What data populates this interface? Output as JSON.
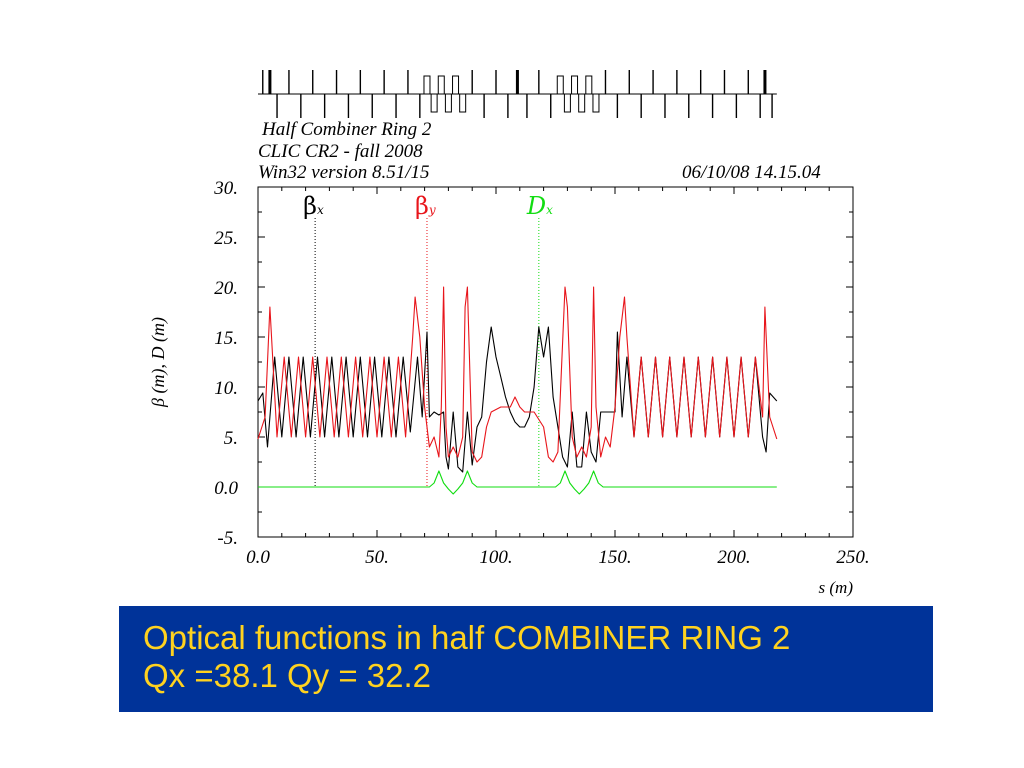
{
  "header": {
    "title": "Half Combiner Ring 2",
    "subtitle": "CLIC CR2 - fall 2008",
    "version": "Win32 version 8.51/15",
    "datetime": "06/10/08  14.15.04"
  },
  "caption": {
    "line1": "Optical functions in half COMBINER RING 2",
    "line2": "Qx =38.1  Qy = 32.2"
  },
  "colors": {
    "beta_x": "#000000",
    "beta_y": "#e8151b",
    "dispersion": "#11dd11",
    "caption_bg": "#003399",
    "caption_text": "#ffd21f"
  },
  "chart_data": {
    "type": "line",
    "xlabel": "s (m)",
    "ylabel": "β (m),  D (m)",
    "xlim": [
      0,
      250
    ],
    "ylim": [
      -5,
      30
    ],
    "xticks": [
      "0.0",
      "50.",
      "100.",
      "150.",
      "200.",
      "250."
    ],
    "yticks": [
      "-5.",
      "0.0",
      "5.",
      "10.",
      "15.",
      "20.",
      "25.",
      "30."
    ],
    "legend": [
      {
        "symbol": "β",
        "sub": "x",
        "color": "#000000",
        "s": 24
      },
      {
        "symbol": "β",
        "sub": "y",
        "color": "#e8151b",
        "s": 71
      },
      {
        "symbol": "D",
        "sub": "x",
        "color": "#11dd11",
        "s": 118
      }
    ],
    "series": [
      {
        "name": "β x",
        "color": "#000000",
        "points": [
          [
            0,
            8.6
          ],
          [
            2,
            9.4
          ],
          [
            4,
            4.0
          ],
          [
            7,
            13.0
          ],
          [
            10,
            5.0
          ],
          [
            13,
            13.0
          ],
          [
            16,
            5.0
          ],
          [
            19,
            13.0
          ],
          [
            22,
            5.0
          ],
          [
            25,
            13.0
          ],
          [
            28,
            5.0
          ],
          [
            31,
            13.0
          ],
          [
            34,
            5.0
          ],
          [
            37,
            13.0
          ],
          [
            40,
            5.0
          ],
          [
            43,
            13.0
          ],
          [
            46,
            5.0
          ],
          [
            49,
            13.0
          ],
          [
            52,
            5.0
          ],
          [
            55,
            13.0
          ],
          [
            58,
            5.0
          ],
          [
            61,
            13.0
          ],
          [
            64,
            5.5
          ],
          [
            67,
            13.0
          ],
          [
            69,
            7.0
          ],
          [
            71,
            15.5
          ],
          [
            72,
            7.0
          ],
          [
            74,
            7.5
          ],
          [
            76,
            7.2
          ],
          [
            78,
            7.5
          ],
          [
            79,
            3.0
          ],
          [
            80,
            1.8
          ],
          [
            82,
            7.5
          ],
          [
            84,
            2.0
          ],
          [
            86,
            1.5
          ],
          [
            88,
            7.5
          ],
          [
            90,
            2.2
          ],
          [
            92,
            6.0
          ],
          [
            94,
            7.0
          ],
          [
            96,
            12.5
          ],
          [
            98,
            16.0
          ],
          [
            100,
            13.0
          ],
          [
            102,
            11.0
          ],
          [
            104,
            9.0
          ],
          [
            106,
            7.5
          ],
          [
            108,
            6.5
          ],
          [
            110,
            6.0
          ],
          [
            112,
            6.0
          ],
          [
            114,
            7.0
          ],
          [
            116,
            10.0
          ],
          [
            118,
            16.0
          ],
          [
            120,
            13.0
          ],
          [
            122,
            16.0
          ],
          [
            124,
            9.0
          ],
          [
            126,
            6.0
          ],
          [
            128,
            3.0
          ],
          [
            130,
            2.0
          ],
          [
            132,
            7.5
          ],
          [
            134,
            2.0
          ],
          [
            136,
            2.0
          ],
          [
            138,
            7.5
          ],
          [
            140,
            3.5
          ],
          [
            142,
            2.5
          ],
          [
            144,
            7.5
          ],
          [
            146,
            7.5
          ],
          [
            148,
            7.5
          ],
          [
            150,
            7.5
          ],
          [
            151,
            15.5
          ],
          [
            153,
            7.0
          ],
          [
            155,
            13.0
          ],
          [
            158,
            5.0
          ],
          [
            161,
            13.0
          ],
          [
            164,
            5.0
          ],
          [
            167,
            13.0
          ],
          [
            170,
            5.0
          ],
          [
            173,
            13.0
          ],
          [
            176,
            5.0
          ],
          [
            179,
            13.0
          ],
          [
            182,
            5.0
          ],
          [
            185,
            13.0
          ],
          [
            188,
            5.0
          ],
          [
            191,
            13.0
          ],
          [
            194,
            5.0
          ],
          [
            197,
            13.0
          ],
          [
            200,
            5.0
          ],
          [
            203,
            13.0
          ],
          [
            206,
            5.0
          ],
          [
            209,
            13.0
          ],
          [
            212,
            5.0
          ],
          [
            213.5,
            3.5
          ],
          [
            215,
            9.4
          ],
          [
            218,
            8.6
          ]
        ]
      },
      {
        "name": "β y",
        "color": "#e8151b",
        "points": [
          [
            0,
            4.8
          ],
          [
            3,
            7.0
          ],
          [
            5,
            18.0
          ],
          [
            8,
            5.0
          ],
          [
            11,
            13.0
          ],
          [
            14,
            5.0
          ],
          [
            17,
            13.0
          ],
          [
            20,
            5.0
          ],
          [
            23,
            13.0
          ],
          [
            26,
            5.0
          ],
          [
            29,
            13.0
          ],
          [
            32,
            5.0
          ],
          [
            35,
            13.0
          ],
          [
            38,
            5.0
          ],
          [
            41,
            13.0
          ],
          [
            44,
            5.0
          ],
          [
            47,
            13.0
          ],
          [
            50,
            5.0
          ],
          [
            53,
            13.0
          ],
          [
            56,
            5.0
          ],
          [
            59,
            13.0
          ],
          [
            62,
            5.0
          ],
          [
            65,
            15.0
          ],
          [
            66,
            19.0
          ],
          [
            68,
            15.0
          ],
          [
            70,
            8.0
          ],
          [
            72,
            4.0
          ],
          [
            74,
            5.0
          ],
          [
            76,
            3.0
          ],
          [
            77,
            8.0
          ],
          [
            78,
            20.0
          ],
          [
            79,
            6.0
          ],
          [
            80,
            3.0
          ],
          [
            82,
            4.0
          ],
          [
            84,
            3.0
          ],
          [
            86,
            5.0
          ],
          [
            87,
            18.0
          ],
          [
            88,
            20.0
          ],
          [
            90,
            3.5
          ],
          [
            92,
            2.5
          ],
          [
            94,
            3.0
          ],
          [
            96,
            6.0
          ],
          [
            98,
            7.5
          ],
          [
            102,
            8.0
          ],
          [
            106,
            8.0
          ],
          [
            108,
            9.0
          ],
          [
            110,
            8.0
          ],
          [
            112,
            7.5
          ],
          [
            116,
            7.5
          ],
          [
            120,
            6.0
          ],
          [
            122,
            3.0
          ],
          [
            124,
            2.5
          ],
          [
            126,
            3.5
          ],
          [
            129,
            20.0
          ],
          [
            130,
            18.0
          ],
          [
            132,
            5.0
          ],
          [
            134,
            3.0
          ],
          [
            136,
            4.0
          ],
          [
            138,
            3.0
          ],
          [
            140,
            6.0
          ],
          [
            141,
            20.0
          ],
          [
            142,
            8.0
          ],
          [
            144,
            3.0
          ],
          [
            146,
            5.0
          ],
          [
            148,
            4.0
          ],
          [
            150,
            8.0
          ],
          [
            152,
            15.0
          ],
          [
            154,
            19.0
          ],
          [
            155,
            15.0
          ],
          [
            158,
            5.0
          ],
          [
            161,
            13.0
          ],
          [
            164,
            5.0
          ],
          [
            167,
            13.0
          ],
          [
            170,
            5.0
          ],
          [
            173,
            13.0
          ],
          [
            176,
            5.0
          ],
          [
            179,
            13.0
          ],
          [
            182,
            5.0
          ],
          [
            185,
            13.0
          ],
          [
            188,
            5.0
          ],
          [
            191,
            13.0
          ],
          [
            194,
            5.0
          ],
          [
            197,
            13.0
          ],
          [
            200,
            5.0
          ],
          [
            203,
            13.0
          ],
          [
            206,
            5.0
          ],
          [
            209,
            13.0
          ],
          [
            212,
            7.0
          ],
          [
            213,
            18.0
          ],
          [
            215,
            7.0
          ],
          [
            218,
            4.8
          ]
        ]
      },
      {
        "name": "D x",
        "color": "#11dd11",
        "points": [
          [
            0,
            0
          ],
          [
            72,
            0
          ],
          [
            74,
            0.4
          ],
          [
            76,
            1.6
          ],
          [
            78,
            0.4
          ],
          [
            80,
            -0.2
          ],
          [
            82,
            -0.7
          ],
          [
            84,
            -0.2
          ],
          [
            86,
            0.4
          ],
          [
            88,
            1.6
          ],
          [
            90,
            0.4
          ],
          [
            92,
            0
          ],
          [
            125,
            0
          ],
          [
            127,
            0.4
          ],
          [
            129,
            1.6
          ],
          [
            131,
            0.4
          ],
          [
            133,
            -0.2
          ],
          [
            135,
            -0.7
          ],
          [
            137,
            -0.2
          ],
          [
            139,
            0.4
          ],
          [
            141,
            1.6
          ],
          [
            143,
            0.4
          ],
          [
            145,
            0
          ],
          [
            218,
            0
          ]
        ]
      }
    ]
  },
  "lattice": {
    "kind": "magnet lattice schematic",
    "s_range": [
      0,
      218
    ],
    "elements": [
      {
        "s": 2,
        "type": "quad",
        "pol": 1
      },
      {
        "s": 5,
        "type": "bend",
        "pol": 1
      },
      {
        "s": 8,
        "type": "quad",
        "pol": -1
      },
      {
        "s": 13,
        "type": "quad",
        "pol": 1
      },
      {
        "s": 18,
        "type": "quad",
        "pol": -1
      },
      {
        "s": 23,
        "type": "quad",
        "pol": 1
      },
      {
        "s": 28,
        "type": "quad",
        "pol": -1
      },
      {
        "s": 33,
        "type": "quad",
        "pol": 1
      },
      {
        "s": 38,
        "type": "quad",
        "pol": -1
      },
      {
        "s": 43,
        "type": "quad",
        "pol": 1
      },
      {
        "s": 48,
        "type": "quad",
        "pol": -1
      },
      {
        "s": 53,
        "type": "quad",
        "pol": 1
      },
      {
        "s": 58,
        "type": "quad",
        "pol": -1
      },
      {
        "s": 63,
        "type": "quad",
        "pol": 1
      },
      {
        "s": 68,
        "type": "quad",
        "pol": -1
      },
      {
        "s": 71,
        "type": "box",
        "pol": 1
      },
      {
        "s": 74,
        "type": "box",
        "pol": -1
      },
      {
        "s": 77,
        "type": "box",
        "pol": 1
      },
      {
        "s": 80,
        "type": "box",
        "pol": -1
      },
      {
        "s": 83,
        "type": "box",
        "pol": 1
      },
      {
        "s": 86,
        "type": "box",
        "pol": -1
      },
      {
        "s": 90,
        "type": "quad",
        "pol": 1
      },
      {
        "s": 95,
        "type": "quad",
        "pol": -1
      },
      {
        "s": 100,
        "type": "quad",
        "pol": 1
      },
      {
        "s": 105,
        "type": "quad",
        "pol": -1
      },
      {
        "s": 109,
        "type": "bend",
        "pol": 1
      },
      {
        "s": 113,
        "type": "quad",
        "pol": -1
      },
      {
        "s": 118,
        "type": "quad",
        "pol": 1
      },
      {
        "s": 123,
        "type": "quad",
        "pol": -1
      },
      {
        "s": 127,
        "type": "box",
        "pol": 1
      },
      {
        "s": 130,
        "type": "box",
        "pol": -1
      },
      {
        "s": 133,
        "type": "box",
        "pol": 1
      },
      {
        "s": 136,
        "type": "box",
        "pol": -1
      },
      {
        "s": 139,
        "type": "box",
        "pol": 1
      },
      {
        "s": 142,
        "type": "box",
        "pol": -1
      },
      {
        "s": 146,
        "type": "quad",
        "pol": 1
      },
      {
        "s": 151,
        "type": "quad",
        "pol": -1
      },
      {
        "s": 156,
        "type": "quad",
        "pol": 1
      },
      {
        "s": 161,
        "type": "quad",
        "pol": -1
      },
      {
        "s": 166,
        "type": "quad",
        "pol": 1
      },
      {
        "s": 171,
        "type": "quad",
        "pol": -1
      },
      {
        "s": 176,
        "type": "quad",
        "pol": 1
      },
      {
        "s": 181,
        "type": "quad",
        "pol": -1
      },
      {
        "s": 186,
        "type": "quad",
        "pol": 1
      },
      {
        "s": 191,
        "type": "quad",
        "pol": -1
      },
      {
        "s": 196,
        "type": "quad",
        "pol": 1
      },
      {
        "s": 201,
        "type": "quad",
        "pol": -1
      },
      {
        "s": 206,
        "type": "quad",
        "pol": 1
      },
      {
        "s": 211,
        "type": "quad",
        "pol": -1
      },
      {
        "s": 213,
        "type": "bend",
        "pol": 1
      },
      {
        "s": 216,
        "type": "quad",
        "pol": -1
      }
    ]
  }
}
